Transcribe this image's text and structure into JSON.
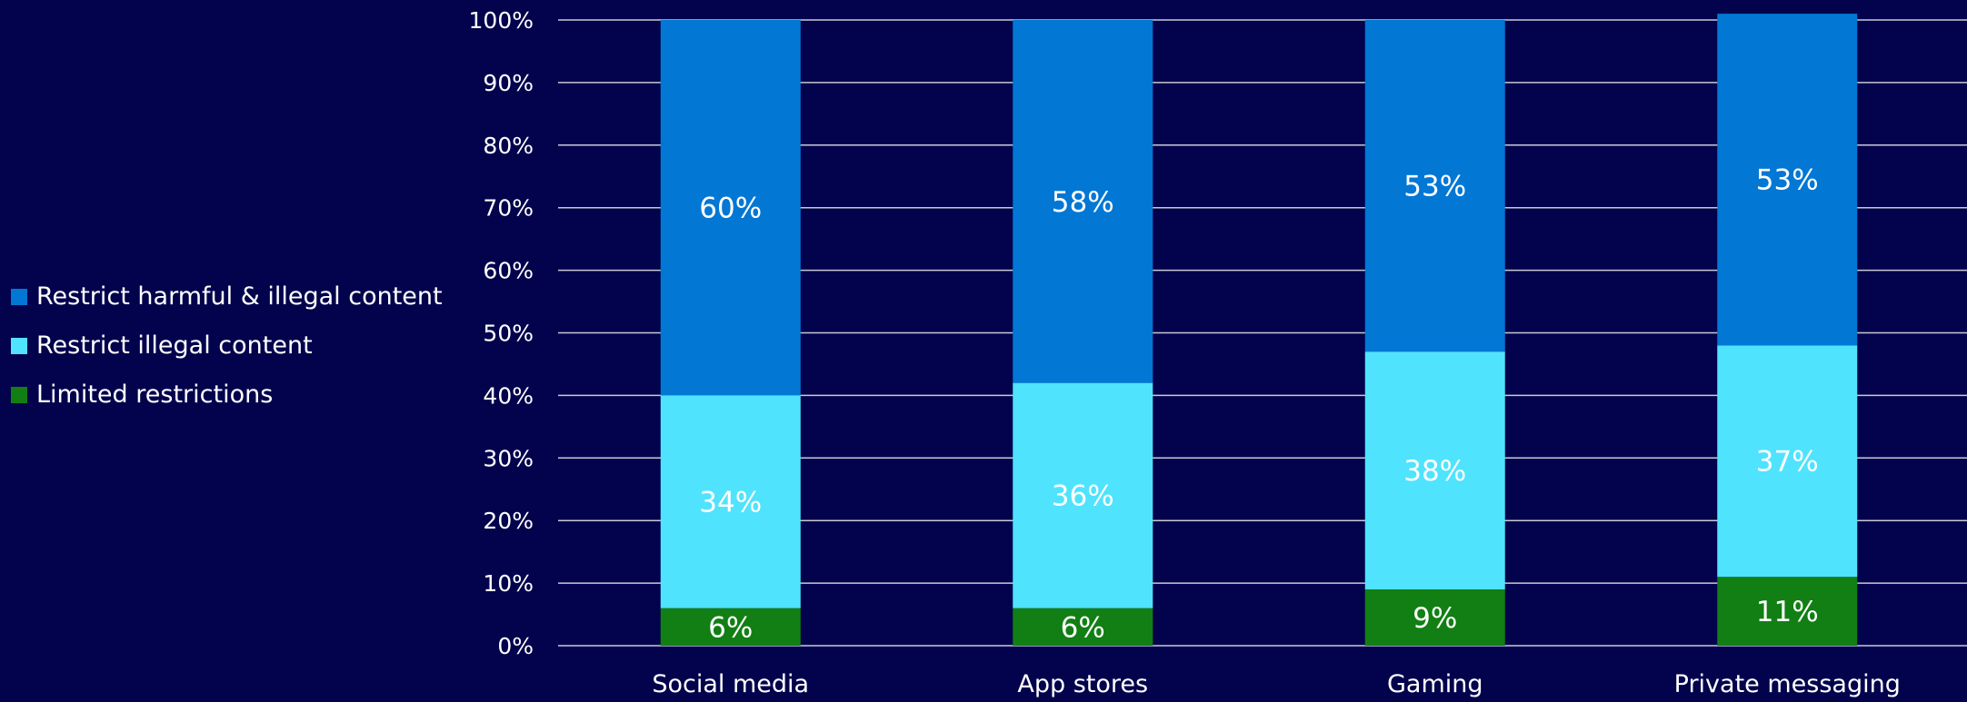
{
  "chart_data": {
    "type": "bar",
    "stacked": true,
    "categories": [
      "Social media",
      "App stores",
      "Gaming",
      "Private messaging"
    ],
    "series": [
      {
        "name": "Limited restrictions",
        "values": [
          6,
          6,
          9,
          11
        ],
        "color": "#117f14"
      },
      {
        "name": "Restrict illegal content",
        "values": [
          34,
          36,
          38,
          37
        ],
        "color": "#50e3fd"
      },
      {
        "name": "Restrict harmful & illegal content",
        "values": [
          60,
          58,
          53,
          53
        ],
        "color": "#0277d4"
      }
    ],
    "segment_labels": [
      [
        "6%",
        "34%",
        "60%"
      ],
      [
        "6%",
        "36%",
        "58%"
      ],
      [
        "9%",
        "38%",
        "53%"
      ],
      [
        "11%",
        "37%",
        "53%"
      ]
    ],
    "y_ticks": [
      "0%",
      "10%",
      "20%",
      "30%",
      "40%",
      "50%",
      "60%",
      "70%",
      "80%",
      "90%",
      "100%"
    ],
    "ylim": [
      0,
      100
    ],
    "grid": true,
    "legend_position": "left",
    "legend": [
      {
        "label": "Restrict harmful & illegal content",
        "color": "#0277d4"
      },
      {
        "label": "Restrict illegal content",
        "color": "#50e3fd"
      },
      {
        "label": "Limited restrictions",
        "color": "#117f14"
      }
    ],
    "background": "#03034d",
    "grid_color": "#c9c9d6",
    "text_color": "#ffffff"
  }
}
